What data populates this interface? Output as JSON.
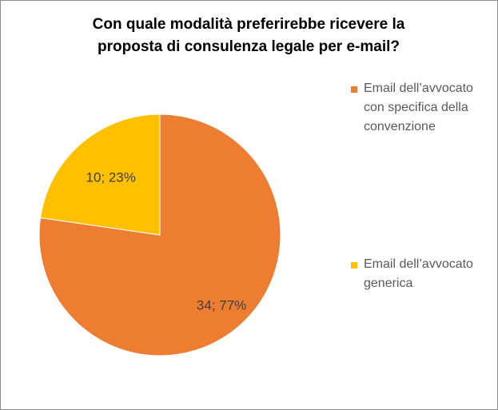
{
  "chart_data": {
    "type": "pie",
    "title_lines": [
      "Con quale modalità preferirebbe ricevere la",
      "proposta di consulenza legale per e-mail?"
    ],
    "slices": [
      {
        "label_lines": [
          "Email dell’avvocato",
          "con specifica della",
          "convenzione"
        ],
        "value": 34,
        "percent": 77,
        "data_label": "34; 77%",
        "color": "#ED7D31"
      },
      {
        "label_lines": [
          "Email dell’avvocato",
          "generica"
        ],
        "value": 10,
        "percent": 23,
        "data_label": "10; 23%",
        "color": "#FFC000"
      }
    ],
    "legend_position": "right"
  }
}
